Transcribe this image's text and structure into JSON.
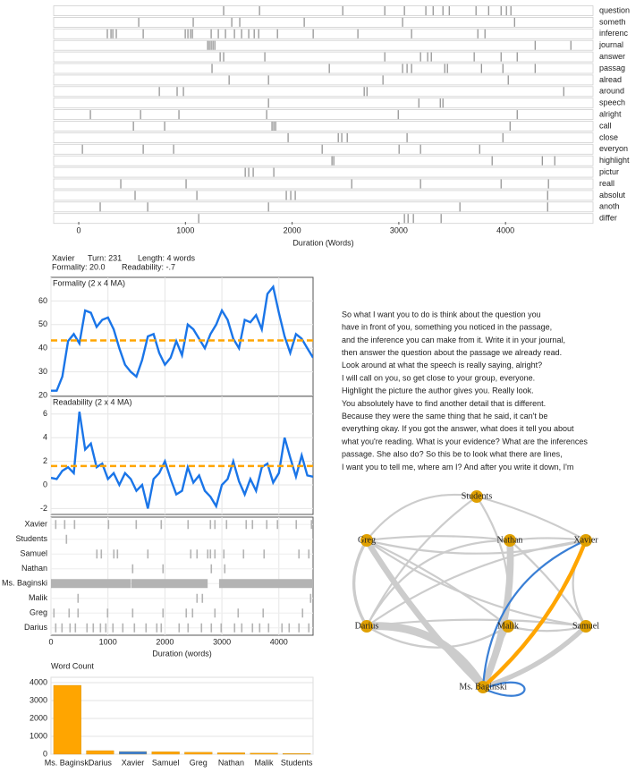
{
  "turn_info": {
    "speaker": "Xavier",
    "turn": "Turn: 231",
    "length": "Length: 4 words",
    "formality": "Formality: 20.0",
    "readability": "Readability: -.7"
  },
  "transcript": {
    "lines": [
      "So what I want you to do is think about the question you",
      "have in front of you, something you noticed in the passage,",
      "and the inference you can make from it. Write it in your journal,",
      "then answer the question about the passage we already read.",
      "Look around at what the speech is really saying, alright?",
      "I will call on you, so get close to your group, everyone.",
      "Highlight the picture the author gives you. Really look.",
      "You absolutely have to find another detail that is different.",
      "Because they were the same thing that he said, it can't be",
      "everything okay. If you got the answer, what does it tell you about",
      "what you're reading. What is your evidence? What are the inferences",
      "passage. She also do? So this be to look what there are lines,",
      "I want you to tell me, where am I? And after you write it down, I'm"
    ]
  },
  "chart_data": [
    {
      "type": "dispersion",
      "xlabel": "Duration (Words)",
      "xlim": [
        -235,
        4820
      ],
      "xticks": [
        0,
        1000,
        2000,
        3000,
        4000
      ],
      "color": "#666666",
      "series": [
        {
          "name": "question",
          "values": [
            1358,
            1694,
            2474,
            2868,
            3052,
            3253,
            3321,
            3413,
            3472,
            3723,
            3841,
            3958,
            4008,
            4050
          ]
        },
        {
          "name": "someth",
          "values": [
            562,
            1073,
            1434,
            1509,
            2113,
            3035,
            4084
          ]
        },
        {
          "name": "inferenc",
          "values": [
            268,
            302,
            319,
            352,
            604,
            998,
            1023,
            1048,
            1065,
            1241,
            1308,
            1375,
            1459,
            1526,
            1593,
            1644,
            1686,
            1862,
            2197,
            2616,
            3119,
            3740,
            3807
          ]
        },
        {
          "name": "journal",
          "values": [
            1208,
            1224,
            1241,
            1258,
            1275,
            4277,
            4612
          ]
        },
        {
          "name": "answer",
          "values": [
            1325,
            1358,
            1744,
            2868,
            3203,
            3270,
            3304,
            3706,
            3958,
            4109
          ]
        },
        {
          "name": "passag",
          "values": [
            1249,
            2348,
            3035,
            3077,
            3119,
            3430,
            3455,
            3774,
            3975,
            4277
          ]
        },
        {
          "name": "alread",
          "values": [
            1409,
            1778,
            2851,
            4025
          ]
        },
        {
          "name": "around",
          "values": [
            755,
            922,
            981,
            2675,
            2701,
            4545
          ]
        },
        {
          "name": "speech",
          "values": [
            1778,
            3187,
            3388,
            3413
          ]
        },
        {
          "name": "alright",
          "values": [
            109,
            579,
            939,
            1761,
            2994,
            4109
          ]
        },
        {
          "name": "call",
          "values": [
            512,
            805,
            1811,
            1828,
            1845,
            4042
          ]
        },
        {
          "name": "close",
          "values": [
            1962,
            2432,
            2465,
            2516,
            3077,
            3975
          ]
        },
        {
          "name": "everyon",
          "values": [
            34,
            604,
            889,
            2281,
            3002,
            3203,
            3757
          ]
        },
        {
          "name": "highlight",
          "values": [
            2373,
            2390,
            3874,
            4344,
            4461
          ]
        },
        {
          "name": "pictur",
          "values": [
            1560,
            1593,
            1635,
            1828
          ]
        },
        {
          "name": "reall",
          "values": [
            394,
            1006,
            2558,
            3203,
            3958,
            4402
          ]
        },
        {
          "name": "absolut",
          "values": [
            528,
            1107,
            1945,
            1987,
            2029,
            4394
          ]
        },
        {
          "name": "anoth",
          "values": [
            201,
            646,
            1778,
            3572,
            4394
          ]
        },
        {
          "name": "differ",
          "values": [
            1124,
            3052,
            3086,
            3136,
            3396
          ]
        }
      ]
    },
    {
      "type": "line",
      "title": "Formality (2 x 4 MA)",
      "color": "#1a75e8",
      "mean_color": "#ffa500",
      "mean": 43.3,
      "xlim": [
        0,
        4600
      ],
      "xticks": [
        0,
        1000,
        2000,
        3000,
        4000
      ],
      "ylim": [
        20,
        70
      ],
      "yticks": [
        20,
        30,
        40,
        50,
        60
      ],
      "x": [
        0,
        100,
        200,
        300,
        400,
        500,
        600,
        700,
        800,
        900,
        1000,
        1100,
        1200,
        1300,
        1400,
        1500,
        1600,
        1700,
        1800,
        1900,
        2000,
        2100,
        2200,
        2300,
        2400,
        2500,
        2600,
        2700,
        2800,
        2900,
        3000,
        3100,
        3200,
        3300,
        3400,
        3500,
        3600,
        3700,
        3800,
        3900,
        4000,
        4100,
        4200,
        4300,
        4400,
        4500,
        4600
      ],
      "values": [
        22,
        22,
        28,
        43,
        46,
        42,
        56,
        55,
        49,
        52,
        53,
        48,
        40,
        33,
        30,
        28,
        35,
        45,
        46,
        38,
        33,
        36,
        43,
        37,
        50,
        48,
        44,
        40,
        46,
        50,
        56,
        52,
        44,
        40,
        52,
        51,
        54,
        48,
        63,
        66,
        55,
        45,
        38,
        46,
        44,
        40,
        36
      ]
    },
    {
      "type": "line",
      "title": "Readability (2 x 4 MA)",
      "color": "#1a75e8",
      "mean_color": "#ffa500",
      "mean": 1.6,
      "xlim": [
        0,
        4600
      ],
      "xticks": [
        0,
        1000,
        2000,
        3000,
        4000
      ],
      "ylim": [
        -2.5,
        7.5
      ],
      "yticks": [
        -2,
        0,
        2,
        4,
        6
      ],
      "x": [
        0,
        100,
        200,
        300,
        400,
        500,
        600,
        700,
        800,
        900,
        1000,
        1100,
        1200,
        1300,
        1400,
        1500,
        1600,
        1700,
        1800,
        1900,
        2000,
        2100,
        2200,
        2300,
        2400,
        2500,
        2600,
        2700,
        2800,
        2900,
        3000,
        3100,
        3200,
        3300,
        3400,
        3500,
        3600,
        3700,
        3800,
        3900,
        4000,
        4100,
        4200,
        4300,
        4400,
        4500,
        4600
      ],
      "values": [
        0.6,
        0.5,
        1.2,
        1.5,
        1.0,
        6.2,
        3.0,
        3.5,
        1.5,
        1.8,
        0.5,
        1.0,
        0.0,
        1.0,
        0.5,
        -0.5,
        0.0,
        -2.0,
        0.5,
        1.0,
        2.0,
        0.5,
        -0.8,
        -0.5,
        1.5,
        0.2,
        0.8,
        -0.5,
        -1.0,
        -1.8,
        0.0,
        0.5,
        2.0,
        0.3,
        -0.8,
        0.5,
        -0.5,
        1.5,
        1.8,
        0.2,
        1.0,
        4.0,
        2.3,
        0.7,
        2.5,
        0.8,
        0.7
      ]
    },
    {
      "type": "turns",
      "xlabel": "Duration (words)",
      "xlim": [
        0,
        4600
      ],
      "xticks": [
        0,
        1000,
        2000,
        3000,
        4000
      ],
      "color": "#b3b3b3",
      "series": [
        {
          "name": "Xavier",
          "segments": [
            [
              71,
              91
            ],
            [
              228,
              248
            ],
            [
              401,
              421
            ],
            [
              997,
              1017
            ],
            [
              1484,
              1504
            ],
            [
              1923,
              1943
            ],
            [
              2394,
              2414
            ],
            [
              2786,
              2806
            ],
            [
              2865,
              2885
            ],
            [
              3069,
              3089
            ],
            [
              3414,
              3434
            ],
            [
              3524,
              3544
            ],
            [
              3775,
              3795
            ],
            [
              3963,
              3983
            ],
            [
              4293,
              4313
            ],
            [
              4560,
              4580
            ]
          ]
        },
        {
          "name": "Students",
          "segments": [
            [
              259,
              279
            ]
          ]
        },
        {
          "name": "Samuel",
          "segments": [
            [
              793,
              813
            ],
            [
              871,
              891
            ],
            [
              1091,
              1111
            ],
            [
              1154,
              1174
            ],
            [
              1688,
              1708
            ],
            [
              2441,
              2461
            ],
            [
              2551,
              2571
            ],
            [
              2739,
              2759
            ],
            [
              2786,
              2806
            ],
            [
              2865,
              2885
            ],
            [
              3022,
              3042
            ],
            [
              3367,
              3387
            ],
            [
              3728,
              3748
            ],
            [
              4340,
              4360
            ],
            [
              4513,
              4533
            ]
          ]
        },
        {
          "name": "Nathan",
          "segments": [
            [
              1421,
              1441
            ],
            [
              1954,
              1974
            ],
            [
              2802,
              2822
            ],
            [
              3038,
              3058
            ]
          ]
        },
        {
          "name": "Ms. Baginski",
          "segments": [
            [
              0,
              1400
            ],
            [
              1410,
              2750
            ],
            [
              2950,
              4600
            ]
          ]
        },
        {
          "name": "Malik",
          "segments": [
            [
              463,
              483
            ],
            [
              2551,
              2571
            ],
            [
              2645,
              2665
            ],
            [
              4545,
              4565
            ]
          ]
        },
        {
          "name": "Greg",
          "segments": [
            [
              39,
              59
            ],
            [
              306,
              326
            ],
            [
              463,
              483
            ],
            [
              981,
              1001
            ],
            [
              1421,
              1441
            ],
            [
              1954,
              1974
            ],
            [
              2362,
              2382
            ],
            [
              2472,
              2492
            ],
            [
              2865,
              2885
            ],
            [
              3273,
              3293
            ],
            [
              3712,
              3732
            ],
            [
              4403,
              4423
            ]
          ]
        },
        {
          "name": "Darius",
          "segments": [
            [
              71,
              91
            ],
            [
              181,
              201
            ],
            [
              322,
              342
            ],
            [
              416,
              436
            ],
            [
              620,
              640
            ],
            [
              730,
              750
            ],
            [
              856,
              876
            ],
            [
              950,
              970
            ],
            [
              1075,
              1095
            ],
            [
              1248,
              1268
            ],
            [
              1452,
              1472
            ],
            [
              1656,
              1676
            ],
            [
              1845,
              1865
            ],
            [
              1923,
              1943
            ],
            [
              2237,
              2257
            ],
            [
              2394,
              2414
            ],
            [
              2629,
              2649
            ],
            [
              2802,
              2822
            ],
            [
              2975,
              2995
            ],
            [
              3210,
              3230
            ],
            [
              3336,
              3356
            ],
            [
              3524,
              3544
            ],
            [
              3650,
              3670
            ],
            [
              3807,
              3827
            ],
            [
              4042,
              4062
            ],
            [
              4168,
              4188
            ],
            [
              4340,
              4360
            ],
            [
              4513,
              4533
            ]
          ]
        }
      ]
    },
    {
      "type": "bar",
      "title": "Word Count",
      "categories": [
        "Ms. Baginski",
        "Darius",
        "Xavier",
        "Samuel",
        "Greg",
        "Nathan",
        "Malik",
        "Students"
      ],
      "values": [
        3850,
        200,
        150,
        140,
        110,
        80,
        60,
        40
      ],
      "colors": [
        "#ffa500",
        "#ffa500",
        "#3a7fd5",
        "#ffa500",
        "#ffa500",
        "#ffa500",
        "#ffa500",
        "#ffa500"
      ],
      "ylim": [
        0,
        4300
      ],
      "yticks": [
        0,
        1000,
        2000,
        3000,
        4000
      ]
    },
    {
      "type": "network",
      "node_color": "#e0a000",
      "nodes": [
        "Students",
        "Greg",
        "Nathan",
        "Xavier",
        "Darius",
        "Malik",
        "Samuel",
        "Ms. Baginski"
      ],
      "edges": [
        {
          "from": "Ms. Baginski",
          "to": "Greg",
          "weight": 6,
          "color": "#cccccc"
        },
        {
          "from": "Ms. Baginski",
          "to": "Nathan",
          "weight": 7,
          "color": "#cccccc"
        },
        {
          "from": "Ms. Baginski",
          "to": "Darius",
          "weight": 8,
          "color": "#cccccc"
        },
        {
          "from": "Ms. Baginski",
          "to": "Malik",
          "weight": 4,
          "color": "#cccccc"
        },
        {
          "from": "Ms. Baginski",
          "to": "Samuel",
          "weight": 5,
          "color": "#cccccc"
        },
        {
          "from": "Ms. Baginski",
          "to": "Students",
          "weight": 2,
          "color": "#cccccc"
        },
        {
          "from": "Greg",
          "to": "Nathan",
          "weight": 2,
          "color": "#cccccc"
        },
        {
          "from": "Greg",
          "to": "Xavier",
          "weight": 2,
          "color": "#cccccc"
        },
        {
          "from": "Greg",
          "to": "Darius",
          "weight": 3,
          "color": "#cccccc"
        },
        {
          "from": "Greg",
          "to": "Malik",
          "weight": 2,
          "color": "#cccccc"
        },
        {
          "from": "Greg",
          "to": "Samuel",
          "weight": 2,
          "color": "#cccccc"
        },
        {
          "from": "Students",
          "to": "Greg",
          "weight": 2,
          "color": "#cccccc"
        },
        {
          "from": "Students",
          "to": "Xavier",
          "weight": 2,
          "color": "#cccccc"
        },
        {
          "from": "Students",
          "to": "Darius",
          "weight": 2,
          "color": "#cccccc"
        },
        {
          "from": "Nathan",
          "to": "Darius",
          "weight": 2,
          "color": "#cccccc"
        },
        {
          "from": "Nathan",
          "to": "Samuel",
          "weight": 2,
          "color": "#cccccc"
        },
        {
          "from": "Xavier",
          "to": "Darius",
          "weight": 2,
          "color": "#cccccc"
        },
        {
          "from": "Xavier",
          "to": "Samuel",
          "weight": 2,
          "color": "#cccccc"
        },
        {
          "from": "Darius",
          "to": "Samuel",
          "weight": 2,
          "color": "#cccccc"
        },
        {
          "from": "Malik",
          "to": "Samuel",
          "weight": 2,
          "color": "#cccccc"
        },
        {
          "from": "Darius",
          "to": "Malik",
          "weight": 2,
          "color": "#cccccc"
        },
        {
          "from": "Nathan",
          "to": "Xavier",
          "weight": 2,
          "color": "#cccccc"
        },
        {
          "from": "Ms. Baginski",
          "to": "Xavier",
          "weight": 4,
          "color": "#ffa500"
        },
        {
          "from": "Xavier",
          "to": "Ms. Baginski",
          "weight": 2,
          "color": "#3a7fd5"
        },
        {
          "from": "Ms. Baginski",
          "to": "Ms. Baginski",
          "weight": 2,
          "color": "#3a7fd5"
        }
      ]
    }
  ]
}
